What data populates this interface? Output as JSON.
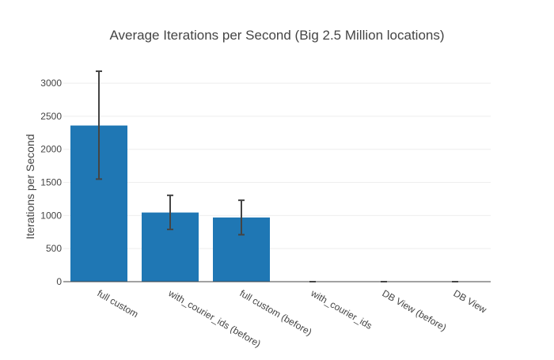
{
  "chart_data": {
    "type": "bar",
    "title": "Average Iterations per Second (Big 2.5 Million locations)",
    "xlabel": "",
    "ylabel": "Iterations per Second",
    "ylim": [
      0,
      3300
    ],
    "yticks": [
      0,
      500,
      1000,
      1500,
      2000,
      2500,
      3000
    ],
    "grid": true,
    "categories": [
      "full custom",
      "with_courier_ids (before)",
      "full custom (before)",
      "with_courier_ids",
      "DB View (before)",
      "DB View"
    ],
    "values": [
      2360,
      1045,
      970,
      0,
      0,
      0
    ],
    "error_low": [
      1550,
      790,
      710,
      0,
      0,
      0
    ],
    "error_high": [
      3180,
      1305,
      1230,
      0,
      0,
      0
    ],
    "bar_color": "#1f77b4"
  }
}
